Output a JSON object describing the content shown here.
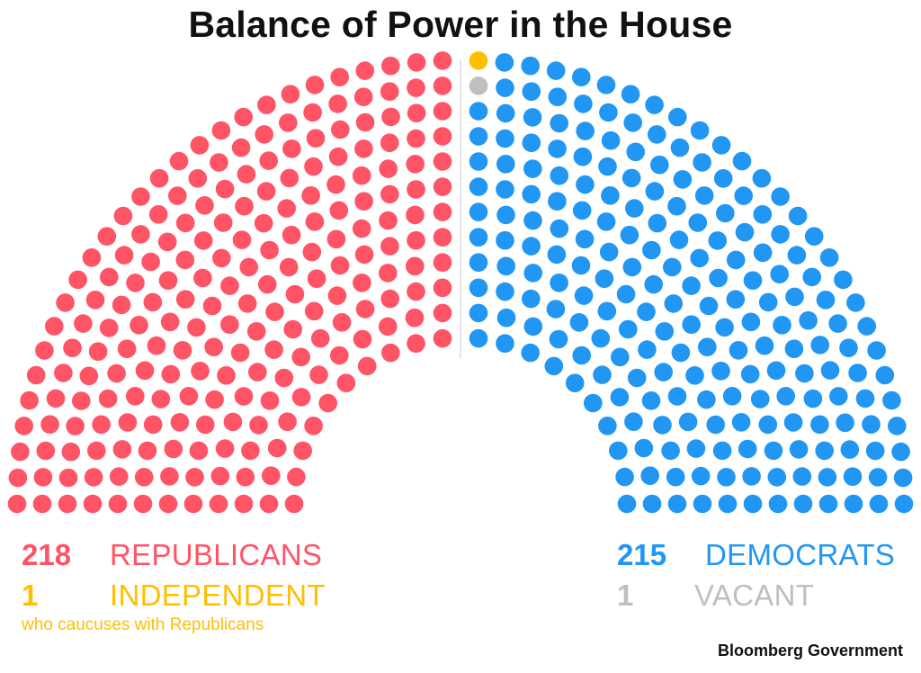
{
  "chart_data": {
    "type": "parliament",
    "title": "Balance of Power in the House",
    "total_seats": 435,
    "series": [
      {
        "name": "REPUBLICANS",
        "value": 218,
        "color": "#ff5466"
      },
      {
        "name": "INDEPENDENT",
        "value": 1,
        "color": "#ffbf00",
        "note": "who caucuses with Republicans"
      },
      {
        "name": "VACANT",
        "value": 1,
        "color": "#bfbfbf"
      },
      {
        "name": "DEMOCRATS",
        "value": 215,
        "color": "#2196f3"
      }
    ]
  },
  "legend": {
    "republicans": {
      "count": "218",
      "label": "REPUBLICANS"
    },
    "independent": {
      "count": "1",
      "label": "INDEPENDENT",
      "note": "who caucuses with Republicans"
    },
    "democrats": {
      "count": "215",
      "label": "DEMOCRATS"
    },
    "vacant": {
      "count": "1",
      "label": "VACANT"
    }
  },
  "source": "Bloomberg Government",
  "colors": {
    "republican": "#ff5466",
    "independent": "#ffbf00",
    "vacant": "#bfbfbf",
    "democrat": "#2196f3",
    "divider": "#cccccc"
  }
}
